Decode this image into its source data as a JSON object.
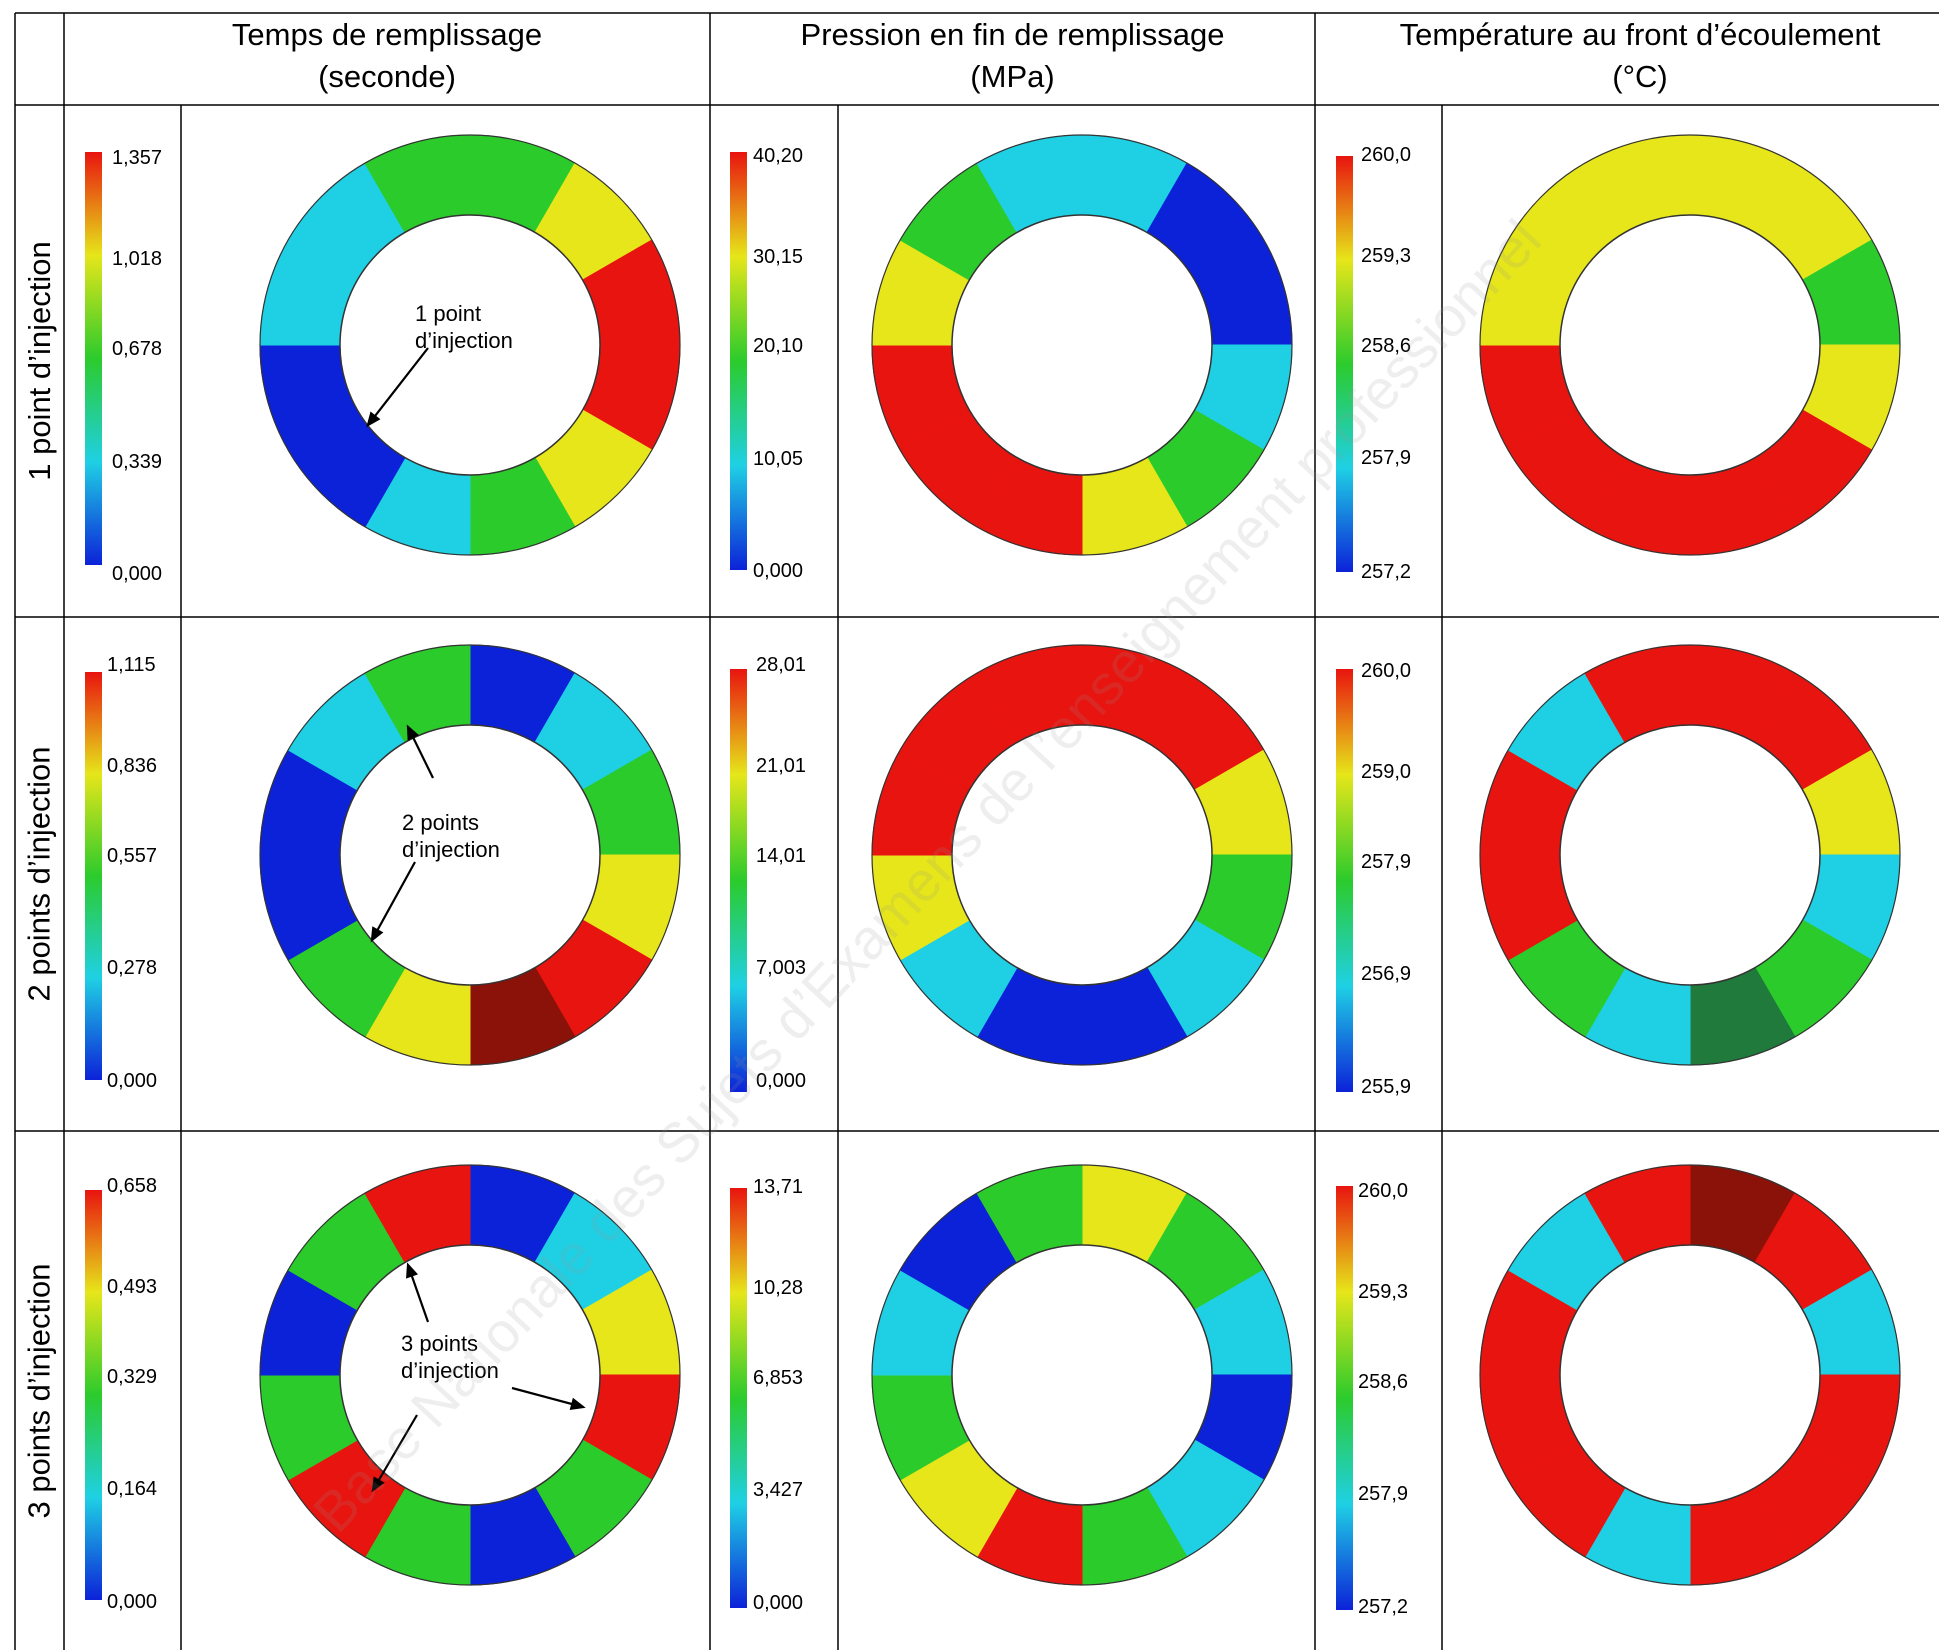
{
  "columns": [
    {
      "line1": "Temps de remplissage",
      "line2": "(seconde)"
    },
    {
      "line1": "Pression en fin de remplissage",
      "line2": "(MPa)"
    },
    {
      "line1": "Température au front d’écoulement",
      "line2": "(°C)"
    }
  ],
  "rows": [
    {
      "label": "1 point d’injection"
    },
    {
      "label": "2 points d’injection"
    },
    {
      "label": "3 points d’injection"
    }
  ],
  "scales": [
    [
      {
        "ticks": [
          "1,357",
          "1,018",
          "0,678",
          "0,339",
          "0,000"
        ]
      },
      {
        "ticks": [
          "40,20",
          "30,15",
          "20,10",
          "10,05",
          "0,000"
        ]
      },
      {
        "ticks": [
          "260,0",
          "259,3",
          "258,6",
          "257,9",
          "257,2"
        ]
      }
    ],
    [
      {
        "ticks": [
          "1,115",
          "0,836",
          "0,557",
          "0,278",
          "0,000"
        ]
      },
      {
        "ticks": [
          "28,01",
          "21,01",
          "14,01",
          "7,003",
          "0,000"
        ]
      },
      {
        "ticks": [
          "260,0",
          "259,0",
          "257,9",
          "256,9",
          "255,9"
        ]
      }
    ],
    [
      {
        "ticks": [
          "0,658",
          "0,493",
          "0,329",
          "0,164",
          "0,000"
        ]
      },
      {
        "ticks": [
          "13,71",
          "10,28",
          "6,853",
          "3,427",
          "0,000"
        ]
      },
      {
        "ticks": [
          "260,0",
          "259,3",
          "258,6",
          "257,9",
          "257,2"
        ]
      }
    ]
  ],
  "annotations": [
    {
      "line1": "1 point",
      "line2": "d’injection"
    },
    {
      "line1": "2 points",
      "line2": "d’injection"
    },
    {
      "line1": "3 points",
      "line2": "d’injection"
    }
  ],
  "watermark": "Base Nationale des Sujets d’Examens de l’enseignement professionnel",
  "colors": {
    "red": "#e8140f",
    "yellow": "#e6e61a",
    "green": "#2ccb2c",
    "cyan": "#1fd0e4",
    "blue": "#0c22d8",
    "dark_red": "#8a1208",
    "dark_green": "#1f7a3c",
    "grid": "#000000"
  }
}
